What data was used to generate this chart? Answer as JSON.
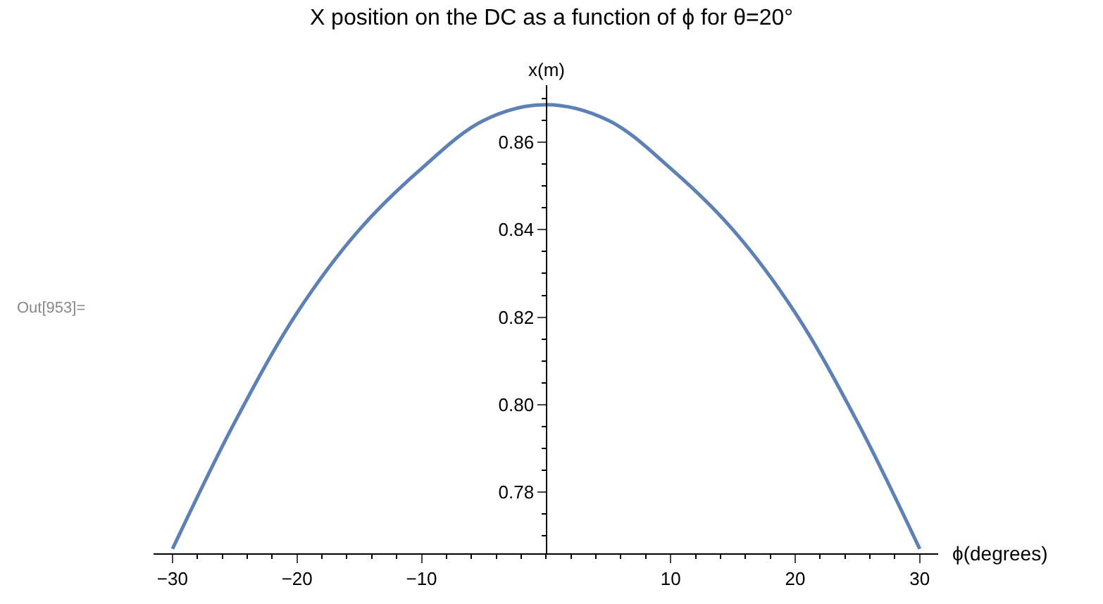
{
  "chart_data": {
    "type": "line",
    "title": "X position on the DC as a function of ϕ for θ=20°",
    "xlabel": "ϕ(degrees)",
    "ylabel": "x(m)",
    "annotations": [
      "Out[953]="
    ],
    "x": [
      -30,
      -25,
      -20,
      -15,
      -10,
      -5,
      0,
      5,
      10,
      15,
      20,
      25,
      30
    ],
    "series": [
      {
        "color": "#5e81b5",
        "values": [
          0.767,
          0.796,
          0.821,
          0.84,
          0.854,
          0.865,
          0.8686,
          0.865,
          0.854,
          0.84,
          0.821,
          0.796,
          0.767
        ]
      }
    ],
    "xlim": [
      -31.5,
      31.5
    ],
    "ylim": [
      0.766,
      0.873
    ],
    "xticks": [
      -30,
      -20,
      -10,
      10,
      20,
      30
    ],
    "yticks": [
      {
        "value": 0.78,
        "label": "0.78"
      },
      {
        "value": 0.8,
        "label": "0.80"
      },
      {
        "value": 0.82,
        "label": "0.82"
      },
      {
        "value": 0.84,
        "label": "0.84"
      },
      {
        "value": 0.86,
        "label": "0.86"
      }
    ],
    "marker": "none",
    "line_style": "solid"
  }
}
